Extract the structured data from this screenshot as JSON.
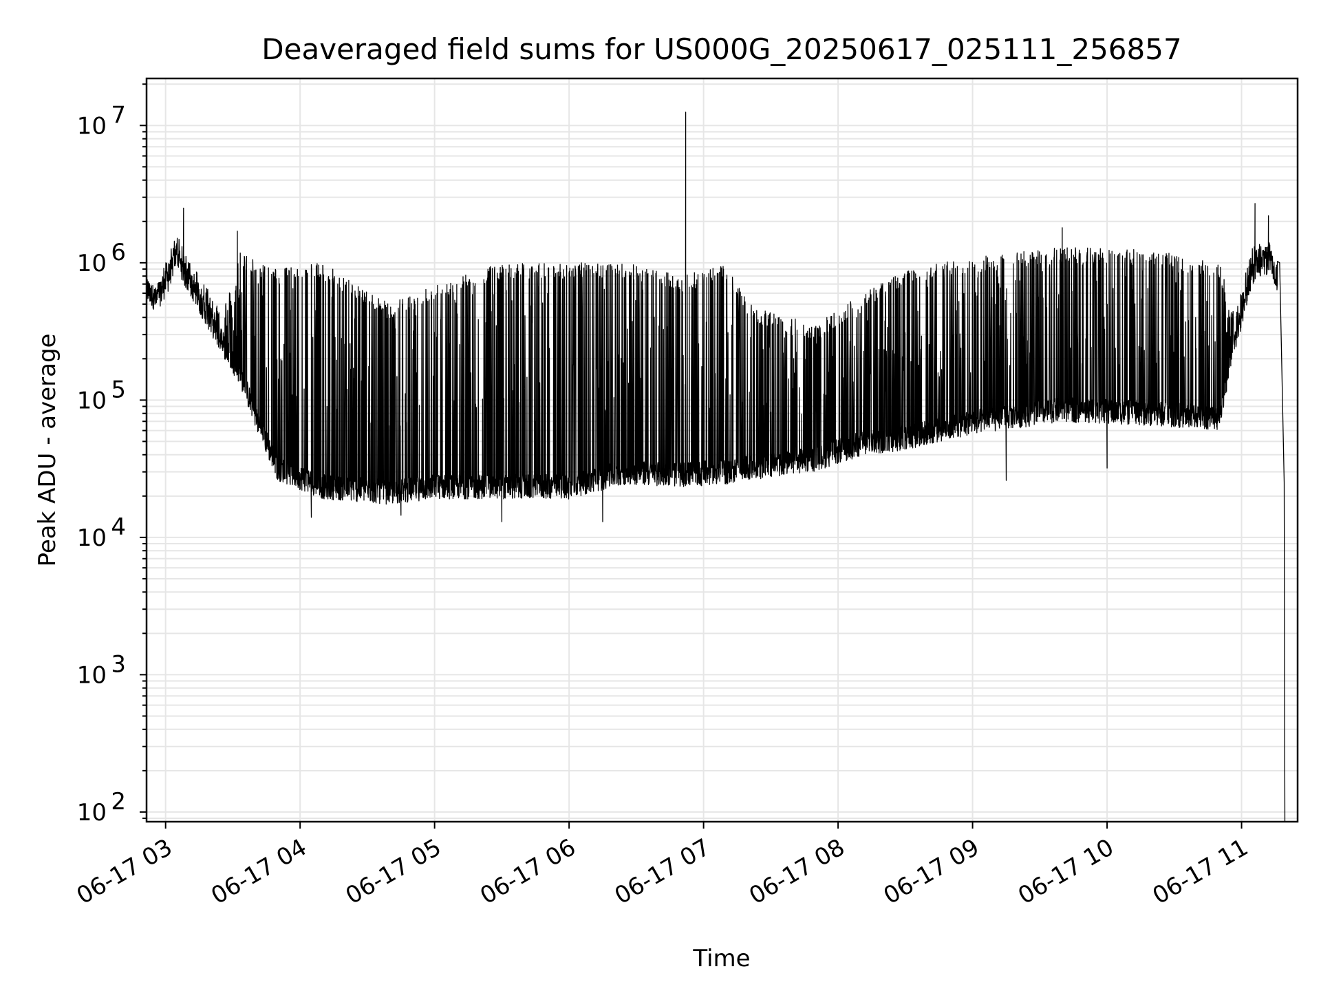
{
  "chart_data": {
    "type": "line",
    "title": "Deaveraged field sums for US000G_20250617_025111_256857",
    "xlabel": "Time",
    "ylabel": "Peak ADU - average",
    "yscale": "log",
    "ylim": [
      85,
      22000000
    ],
    "xlim": [
      "2025-06-17T02:51:30",
      "2025-06-17T11:25:00"
    ],
    "grid": "both",
    "line_color": "#000000",
    "grid_color": "#e6e6e6",
    "x_ticks": [
      {
        "t": "2025-06-17T03:00:00",
        "label": "06-17 03"
      },
      {
        "t": "2025-06-17T04:00:00",
        "label": "06-17 04"
      },
      {
        "t": "2025-06-17T05:00:00",
        "label": "06-17 05"
      },
      {
        "t": "2025-06-17T06:00:00",
        "label": "06-17 06"
      },
      {
        "t": "2025-06-17T07:00:00",
        "label": "06-17 07"
      },
      {
        "t": "2025-06-17T08:00:00",
        "label": "06-17 08"
      },
      {
        "t": "2025-06-17T09:00:00",
        "label": "06-17 09"
      },
      {
        "t": "2025-06-17T10:00:00",
        "label": "06-17 10"
      },
      {
        "t": "2025-06-17T11:00:00",
        "label": "06-17 11"
      }
    ],
    "y_ticks": [
      {
        "v": 100,
        "base": "10",
        "exp": "2"
      },
      {
        "v": 1000,
        "base": "10",
        "exp": "3"
      },
      {
        "v": 10000,
        "base": "10",
        "exp": "4"
      },
      {
        "v": 100000,
        "base": "10",
        "exp": "5"
      },
      {
        "v": 1000000,
        "base": "10",
        "exp": "6"
      },
      {
        "v": 10000000,
        "base": "10",
        "exp": "7"
      }
    ],
    "series": [
      {
        "envelope": [
          {
            "t": "2025-06-17T02:51:30",
            "floor": 600000,
            "peak": 800000
          },
          {
            "t": "2025-06-17T02:56:00",
            "floor": 500000,
            "peak": 700000
          },
          {
            "t": "2025-06-17T03:01:00",
            "floor": 700000,
            "peak": 1200000
          },
          {
            "t": "2025-06-17T03:05:00",
            "floor": 1100000,
            "peak": 1700000
          },
          {
            "t": "2025-06-17T03:08:00",
            "floor": 800000,
            "peak": 1300000
          },
          {
            "t": "2025-06-17T03:15:00",
            "floor": 500000,
            "peak": 900000
          },
          {
            "t": "2025-06-17T03:25:00",
            "floor": 250000,
            "peak": 500000
          },
          {
            "t": "2025-06-17T03:33:00",
            "floor": 150000,
            "peak": 1200000
          },
          {
            "t": "2025-06-17T03:42:00",
            "floor": 60000,
            "peak": 1000000
          },
          {
            "t": "2025-06-17T03:50:00",
            "floor": 30000,
            "peak": 900000
          },
          {
            "t": "2025-06-17T04:10:00",
            "floor": 22000,
            "peak": 1000000
          },
          {
            "t": "2025-06-17T04:40:00",
            "floor": 20000,
            "peak": 500000
          },
          {
            "t": "2025-06-17T05:00:00",
            "floor": 22000,
            "peak": 700000
          },
          {
            "t": "2025-06-17T05:30:00",
            "floor": 22000,
            "peak": 1000000
          },
          {
            "t": "2025-06-17T06:00:00",
            "floor": 22000,
            "peak": 1000000
          },
          {
            "t": "2025-06-17T06:25:00",
            "floor": 28000,
            "peak": 1000000
          },
          {
            "t": "2025-06-17T06:50:00",
            "floor": 27000,
            "peak": 800000
          },
          {
            "t": "2025-06-17T07:10:00",
            "floor": 28000,
            "peak": 1000000
          },
          {
            "t": "2025-06-17T07:20:00",
            "floor": 30000,
            "peak": 500000
          },
          {
            "t": "2025-06-17T07:50:00",
            "floor": 35000,
            "peak": 350000
          },
          {
            "t": "2025-06-17T08:10:00",
            "floor": 45000,
            "peak": 600000
          },
          {
            "t": "2025-06-17T08:30:00",
            "floor": 50000,
            "peak": 900000
          },
          {
            "t": "2025-06-17T09:00:00",
            "floor": 65000,
            "peak": 1100000
          },
          {
            "t": "2025-06-17T09:40:00",
            "floor": 80000,
            "peak": 1300000
          },
          {
            "t": "2025-06-17T10:20:00",
            "floor": 75000,
            "peak": 1250000
          },
          {
            "t": "2025-06-17T10:50:00",
            "floor": 70000,
            "peak": 1000000
          },
          {
            "t": "2025-06-17T10:57:00",
            "floor": 250000,
            "peak": 450000
          },
          {
            "t": "2025-06-17T11:05:00",
            "floor": 800000,
            "peak": 1400000
          },
          {
            "t": "2025-06-17T11:13:00",
            "floor": 1000000,
            "peak": 1500000
          },
          {
            "t": "2025-06-17T11:16:00",
            "floor": 700000,
            "peak": 1200000
          }
        ],
        "spikes": [
          {
            "t": "2025-06-17T03:08:00",
            "v": 2500000
          },
          {
            "t": "2025-06-17T06:52:00",
            "v": 12500000
          },
          {
            "t": "2025-06-17T11:06:00",
            "v": 2700000
          },
          {
            "t": "2025-06-17T11:12:00",
            "v": 2200000
          },
          {
            "t": "2025-06-17T09:40:00",
            "v": 1800000
          },
          {
            "t": "2025-06-17T03:32:00",
            "v": 1700000
          }
        ],
        "dips": [
          {
            "t": "2025-06-17T04:05:00",
            "v": 14000
          },
          {
            "t": "2025-06-17T04:45:00",
            "v": 14500
          },
          {
            "t": "2025-06-17T05:30:00",
            "v": 13000
          },
          {
            "t": "2025-06-17T06:15:00",
            "v": 13000
          },
          {
            "t": "2025-06-17T09:15:00",
            "v": 26000
          },
          {
            "t": "2025-06-17T10:00:00",
            "v": 32000
          }
        ],
        "final_drop": [
          {
            "t": "2025-06-17T11:17:00",
            "v": 1000000
          },
          {
            "t": "2025-06-17T11:19:00",
            "v": 25000
          },
          {
            "t": "2025-06-17T11:19:20",
            "v": 85
          }
        ]
      }
    ]
  }
}
